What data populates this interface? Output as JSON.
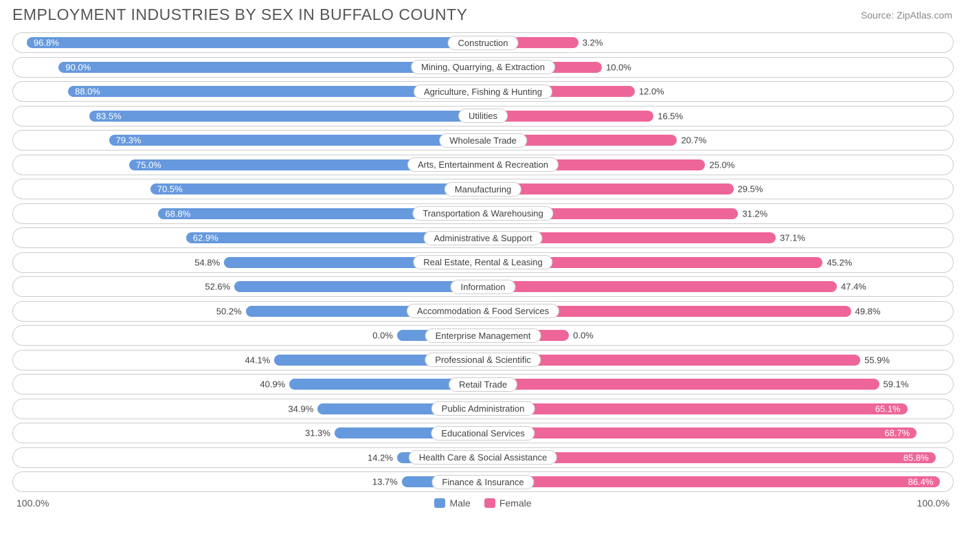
{
  "title": "EMPLOYMENT INDUSTRIES BY SEX IN BUFFALO COUNTY",
  "source": "Source: ZipAtlas.com",
  "colors": {
    "male": "#6699dd",
    "female": "#ee6699",
    "border": "#cccccc",
    "text": "#404040",
    "title": "#555555",
    "bg": "#ffffff"
  },
  "axis": {
    "left": "100.0%",
    "right": "100.0%"
  },
  "legend": {
    "male": "Male",
    "female": "Female"
  },
  "rows": [
    {
      "label": "Construction",
      "male": 96.8,
      "female": 3.2,
      "male_bar": 96.8,
      "female_bar": 20.0,
      "male_inside": true,
      "female_inside": false
    },
    {
      "label": "Mining, Quarrying, & Extraction",
      "male": 90.0,
      "female": 10.0,
      "male_bar": 90.0,
      "female_bar": 25.0,
      "male_inside": true,
      "female_inside": false
    },
    {
      "label": "Agriculture, Fishing & Hunting",
      "male": 88.0,
      "female": 12.0,
      "male_bar": 88.0,
      "female_bar": 32.0,
      "male_inside": true,
      "female_inside": false
    },
    {
      "label": "Utilities",
      "male": 83.5,
      "female": 16.5,
      "male_bar": 83.5,
      "female_bar": 36.0,
      "male_inside": true,
      "female_inside": false
    },
    {
      "label": "Wholesale Trade",
      "male": 79.3,
      "female": 20.7,
      "male_bar": 79.3,
      "female_bar": 41.0,
      "male_inside": true,
      "female_inside": false
    },
    {
      "label": "Arts, Entertainment & Recreation",
      "male": 75.0,
      "female": 25.0,
      "male_bar": 75.0,
      "female_bar": 47.0,
      "male_inside": true,
      "female_inside": false
    },
    {
      "label": "Manufacturing",
      "male": 70.5,
      "female": 29.5,
      "male_bar": 70.5,
      "female_bar": 53.0,
      "male_inside": true,
      "female_inside": false
    },
    {
      "label": "Transportation & Warehousing",
      "male": 68.8,
      "female": 31.2,
      "male_bar": 68.8,
      "female_bar": 54.0,
      "male_inside": true,
      "female_inside": false
    },
    {
      "label": "Administrative & Support",
      "male": 62.9,
      "female": 37.1,
      "male_bar": 62.9,
      "female_bar": 62.0,
      "male_inside": true,
      "female_inside": false
    },
    {
      "label": "Real Estate, Rental & Leasing",
      "male": 54.8,
      "female": 45.2,
      "male_bar": 54.8,
      "female_bar": 72.0,
      "male_inside": false,
      "female_inside": false
    },
    {
      "label": "Information",
      "male": 52.6,
      "female": 47.4,
      "male_bar": 52.6,
      "female_bar": 75.0,
      "male_inside": false,
      "female_inside": false
    },
    {
      "label": "Accommodation & Food Services",
      "male": 50.2,
      "female": 49.8,
      "male_bar": 50.2,
      "female_bar": 78.0,
      "male_inside": false,
      "female_inside": false
    },
    {
      "label": "Enterprise Management",
      "male": 0.0,
      "female": 0.0,
      "male_bar": 18.0,
      "female_bar": 18.0,
      "male_inside": false,
      "female_inside": false
    },
    {
      "label": "Professional & Scientific",
      "male": 44.1,
      "female": 55.9,
      "male_bar": 44.1,
      "female_bar": 80.0,
      "male_inside": false,
      "female_inside": false
    },
    {
      "label": "Retail Trade",
      "male": 40.9,
      "female": 59.1,
      "male_bar": 40.9,
      "female_bar": 84.0,
      "male_inside": false,
      "female_inside": false
    },
    {
      "label": "Public Administration",
      "male": 34.9,
      "female": 65.1,
      "male_bar": 34.9,
      "female_bar": 90.0,
      "male_inside": false,
      "female_inside": true
    },
    {
      "label": "Educational Services",
      "male": 31.3,
      "female": 68.7,
      "male_bar": 31.3,
      "female_bar": 92.0,
      "male_inside": false,
      "female_inside": true
    },
    {
      "label": "Health Care & Social Assistance",
      "male": 14.2,
      "female": 85.8,
      "male_bar": 18.0,
      "female_bar": 96.0,
      "male_inside": false,
      "female_inside": true
    },
    {
      "label": "Finance & Insurance",
      "male": 13.7,
      "female": 86.4,
      "male_bar": 17.0,
      "female_bar": 97.0,
      "male_inside": false,
      "female_inside": true
    }
  ]
}
